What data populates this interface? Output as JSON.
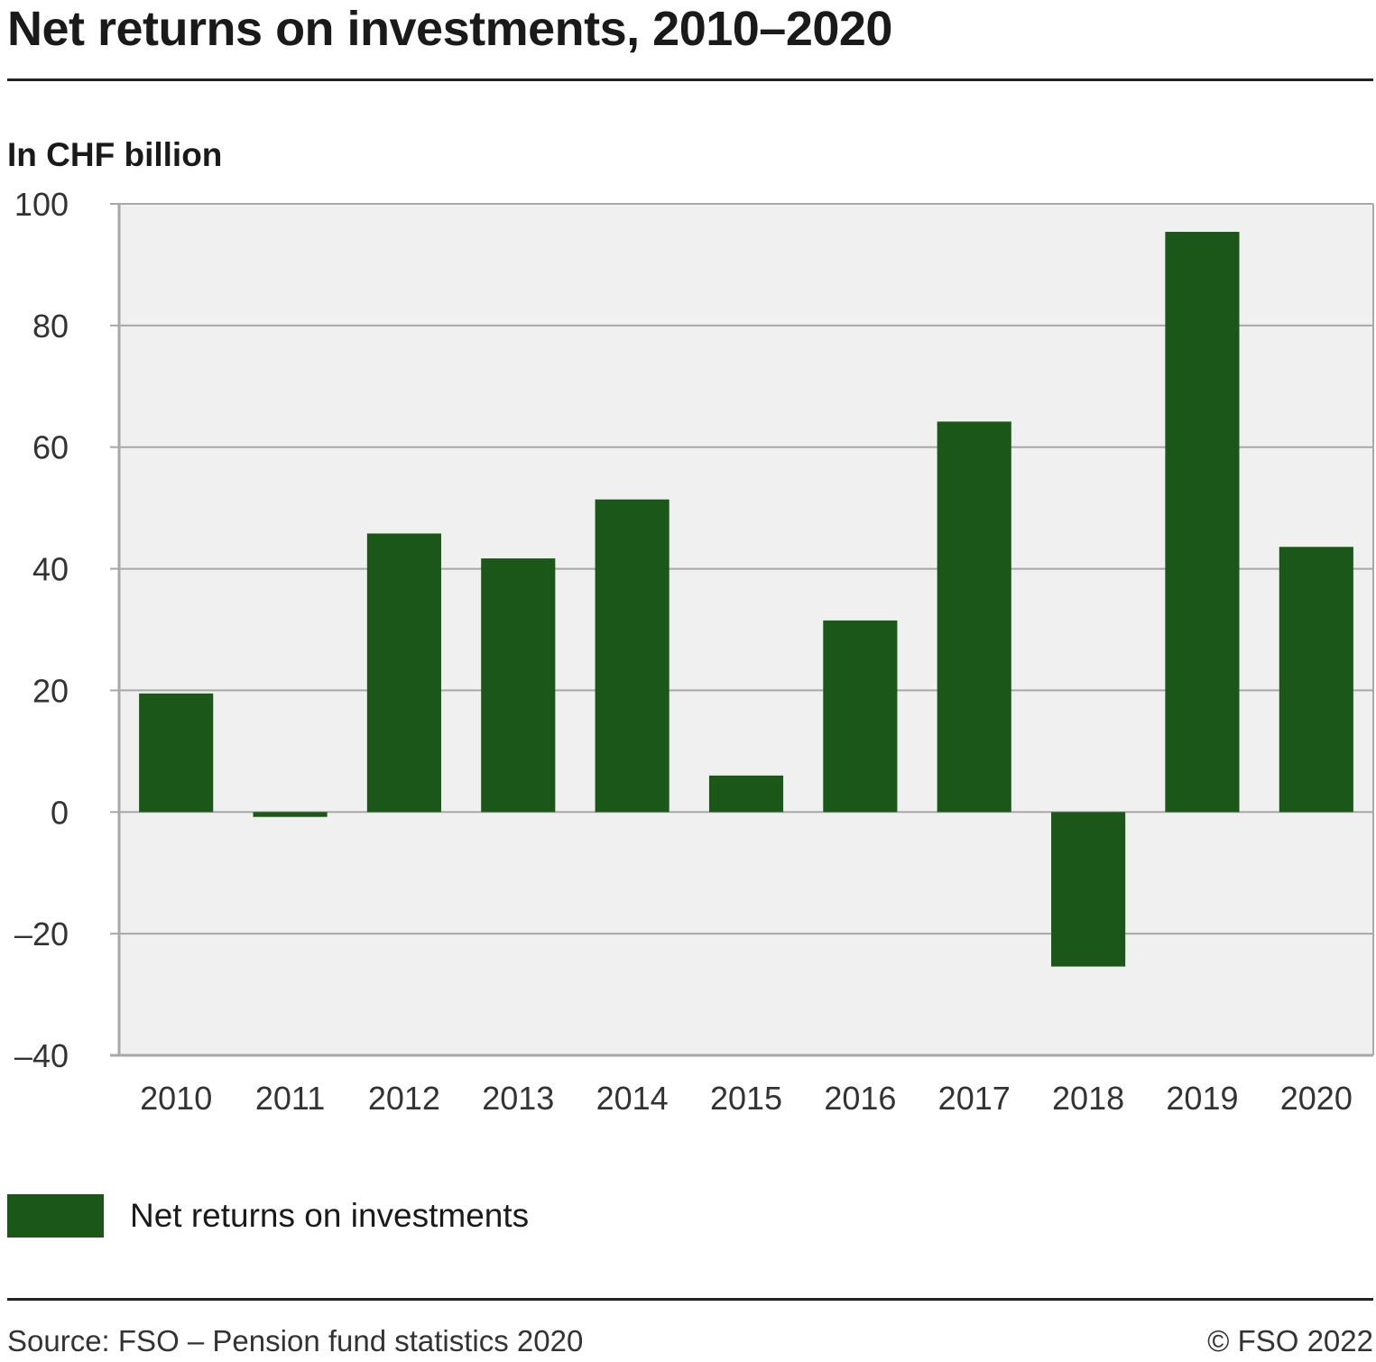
{
  "header": {
    "title": "Net returns on investments, 2010–2020"
  },
  "chart_data": {
    "type": "bar",
    "title": "Net returns on investments, 2010–2020",
    "ylabel": "In CHF billion",
    "xlabel": "",
    "categories": [
      "2010",
      "2011",
      "2012",
      "2013",
      "2014",
      "2015",
      "2016",
      "2017",
      "2018",
      "2019",
      "2020"
    ],
    "series": [
      {
        "name": "Net returns on investments",
        "values": [
          19.5,
          -0.8,
          45.8,
          41.7,
          51.4,
          6.0,
          31.5,
          64.2,
          -25.4,
          95.4,
          43.6
        ]
      }
    ],
    "ylim": [
      -40,
      100
    ],
    "yticks": [
      100,
      80,
      60,
      40,
      20,
      0,
      -20,
      -40
    ],
    "ytick_labels": [
      "100",
      "80",
      "60",
      "40",
      "20",
      "0",
      "–20",
      "–40"
    ],
    "grid": true,
    "bar_color": "#1b5718",
    "plot_background": "#f0f0f0",
    "grid_color": "#a8a8a8",
    "legend_position": "bottom-left"
  },
  "legend": {
    "label": "Net returns on investments"
  },
  "footer": {
    "source": "Source: FSO – Pension fund statistics 2020",
    "copyright": "© FSO 2022"
  }
}
